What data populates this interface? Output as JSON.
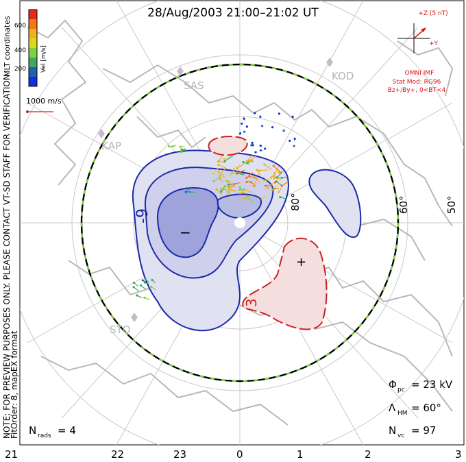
{
  "title": "28/Aug/2003 21:00–21:02 UT",
  "side_note_1": "NOTE: FOR PREVIEW PURPOSES ONLY. PLEASE CONTACT VT-SD STAFF FOR VERIFICATION.",
  "side_note_2": "FitOrder: 8, mapEX format",
  "colorbar": {
    "title": "MLT coordinates",
    "unit": "Vel [m/s]",
    "ticks": [
      "600",
      "400",
      "200"
    ],
    "colors": [
      "#e8281e",
      "#f07818",
      "#f0b020",
      "#d8d820",
      "#80d040",
      "#40a860",
      "#2060b0",
      "#1030e0"
    ]
  },
  "scale_vector": {
    "label": "1000 m/s",
    "color": "#cc2020"
  },
  "imf": {
    "label": "+Z (5 nT)",
    "y_label": "+Y",
    "source": "OMNI IMF",
    "model": "Stat Mod: RG96",
    "condition": "Bz+/By+, 0<BT<4",
    "color": "#dd1111"
  },
  "stations": [
    "SAS",
    "KOD",
    "KAP",
    "STO"
  ],
  "latitude_labels": [
    "80°",
    "60°",
    "50°"
  ],
  "contours": {
    "negative_label": "-9",
    "positive_label": "3",
    "min_sign": "−",
    "max_sign": "+"
  },
  "stats": {
    "phi_symbol": "Φ",
    "phi_sub": "pc",
    "phi_value": "= 23 kV",
    "lambda_symbol": "Λ",
    "lambda_sub": "HM",
    "lambda_value": "= 60°",
    "n_symbol": "N",
    "nvc_sub": "vc",
    "nvc_value": "= 97",
    "nrads_sub": "rads",
    "nrads_value": "= 4"
  },
  "mlt_axis": [
    "21",
    "22",
    "23",
    "0",
    "1",
    "2",
    "3"
  ]
}
